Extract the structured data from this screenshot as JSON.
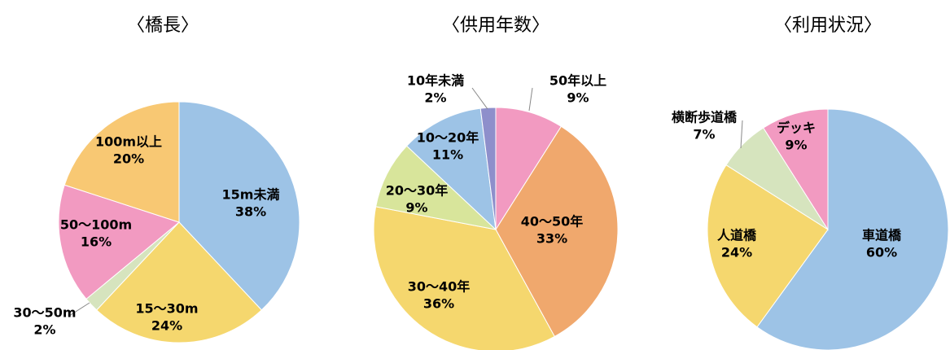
{
  "chart_data": [
    {
      "type": "pie",
      "title": "〈橋長〉",
      "categories": [
        "15m未満",
        "15～30m",
        "30～50m",
        "50～100m",
        "100m以上"
      ],
      "values": [
        38,
        24,
        2,
        16,
        20
      ],
      "value_labels": [
        "38%",
        "24%",
        "2%",
        "16%",
        "20%"
      ],
      "colors": [
        "#9dc3e6",
        "#f5d76e",
        "#d6e4be",
        "#f29ac1",
        "#f8c873"
      ]
    },
    {
      "type": "pie",
      "title": "〈供用年数〉",
      "categories": [
        "50年以上",
        "40～50年",
        "30～40年",
        "20～30年",
        "10～20年",
        "10年未満"
      ],
      "values": [
        9,
        33,
        36,
        9,
        11,
        2
      ],
      "value_labels": [
        "9%",
        "33%",
        "36%",
        "9%",
        "11%",
        "2%"
      ],
      "colors": [
        "#f29ac1",
        "#f0a86d",
        "#f5d76e",
        "#d8e59b",
        "#9dc3e6",
        "#8e8fcb"
      ]
    },
    {
      "type": "pie",
      "title": "〈利用状況〉",
      "categories": [
        "車道橋",
        "人道橋",
        "横断歩道橋",
        "デッキ"
      ],
      "values": [
        60,
        24,
        7,
        9
      ],
      "value_labels": [
        "60%",
        "24%",
        "7%",
        "9%"
      ],
      "colors": [
        "#9dc3e6",
        "#f5d76e",
        "#d6e4be",
        "#f29ac1"
      ]
    }
  ]
}
